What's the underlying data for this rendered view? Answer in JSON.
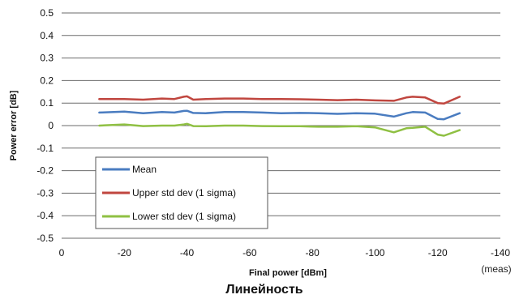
{
  "chart_data": {
    "type": "line",
    "xlabel": "Final power [dBm]",
    "ylabel": "Power error [dB]",
    "xlim": [
      0,
      -140
    ],
    "ylim": [
      -0.5,
      0.5
    ],
    "x_ticks": [
      "0",
      "-20",
      "-40",
      "-60",
      "-80",
      "-100",
      "-120",
      "-140"
    ],
    "y_ticks": [
      "0.5",
      "0.4",
      "0.3",
      "0.2",
      "0.1",
      "0",
      "-0.1",
      "-0.2",
      "-0.3",
      "-0.4",
      "-0.5"
    ],
    "grid": "horizontal",
    "legend_position": "bottom-left",
    "x_note": "(meas)",
    "caption": "Линейность",
    "series": [
      {
        "name": "Mean",
        "color": "#4a7cc0",
        "x": [
          -12,
          -20,
          -26,
          -32,
          -36,
          -39,
          -40,
          -42,
          -46,
          -52,
          -58,
          -64,
          -70,
          -76,
          -82,
          -88,
          -94,
          -100,
          -106,
          -110,
          -112,
          -116,
          -120,
          -122,
          -127
        ],
        "y": [
          0.058,
          0.062,
          0.055,
          0.06,
          0.058,
          0.065,
          0.066,
          0.056,
          0.055,
          0.06,
          0.06,
          0.058,
          0.055,
          0.056,
          0.055,
          0.052,
          0.055,
          0.053,
          0.04,
          0.055,
          0.06,
          0.058,
          0.03,
          0.028,
          0.055
        ]
      },
      {
        "name": "Upper std dev (1 sigma)",
        "color": "#c0463f",
        "x": [
          -12,
          -20,
          -26,
          -32,
          -36,
          -39,
          -40,
          -42,
          -46,
          -52,
          -58,
          -64,
          -70,
          -76,
          -82,
          -88,
          -94,
          -100,
          -106,
          -110,
          -112,
          -116,
          -120,
          -122,
          -127
        ],
        "y": [
          0.118,
          0.118,
          0.115,
          0.12,
          0.118,
          0.128,
          0.13,
          0.115,
          0.118,
          0.12,
          0.12,
          0.118,
          0.118,
          0.117,
          0.115,
          0.113,
          0.115,
          0.112,
          0.11,
          0.125,
          0.128,
          0.125,
          0.1,
          0.098,
          0.128
        ]
      },
      {
        "name": "Lower std dev (1 sigma)",
        "color": "#8fc043",
        "x": [
          -12,
          -20,
          -26,
          -32,
          -36,
          -39,
          -40,
          -42,
          -46,
          -52,
          -58,
          -64,
          -70,
          -76,
          -82,
          -88,
          -94,
          -100,
          -106,
          -110,
          -112,
          -116,
          -120,
          -122,
          -127
        ],
        "y": [
          0.0,
          0.005,
          -0.002,
          0.0,
          0.0,
          0.005,
          0.008,
          -0.002,
          -0.003,
          0.0,
          0.0,
          -0.002,
          -0.003,
          -0.003,
          -0.005,
          -0.005,
          -0.003,
          -0.008,
          -0.03,
          -0.012,
          -0.01,
          -0.005,
          -0.04,
          -0.045,
          -0.02
        ]
      }
    ]
  }
}
